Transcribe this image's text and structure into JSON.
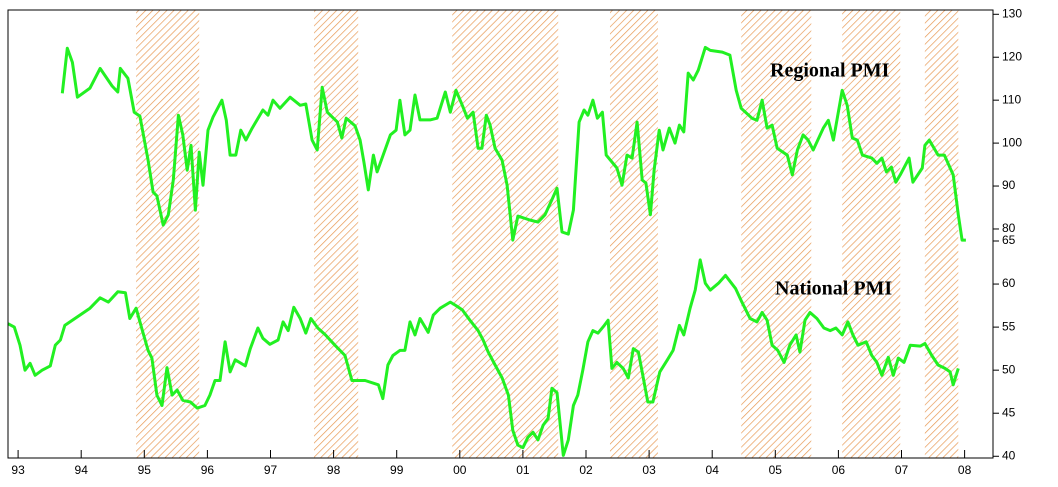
{
  "chart_data": [
    {
      "type": "line",
      "annotation": "Regional PMI",
      "xlim": [
        1992.84,
        2008.45
      ],
      "ylim": [
        77.2,
        131
      ],
      "yticks": [
        80,
        90,
        100,
        110,
        120,
        130
      ],
      "shaded_periods": [
        [
          1994.87,
          1995.87
        ],
        [
          1997.69,
          1998.39
        ],
        [
          1999.88,
          2001.56
        ],
        [
          2002.38,
          2003.14
        ],
        [
          2004.46,
          2005.57
        ],
        [
          2006.06,
          2006.98
        ],
        [
          2007.37,
          2007.9
        ]
      ],
      "series": [
        {
          "name": "Regional PMI",
          "color": "#22f022",
          "x": [
            1993.7,
            1993.78,
            1993.86,
            1993.94,
            1994.14,
            1994.3,
            1994.49,
            1994.58,
            1994.62,
            1994.74,
            1994.84,
            1994.93,
            1995.06,
            1995.14,
            1995.2,
            1995.3,
            1995.38,
            1995.46,
            1995.54,
            1995.61,
            1995.68,
            1995.74,
            1995.81,
            1995.87,
            1995.93,
            1996.01,
            1996.09,
            1996.23,
            1996.3,
            1996.36,
            1996.45,
            1996.53,
            1996.61,
            1996.71,
            1996.88,
            1996.96,
            1997.04,
            1997.15,
            1997.31,
            1997.47,
            1997.56,
            1997.66,
            1997.74,
            1997.82,
            1997.9,
            1998.06,
            1998.13,
            1998.2,
            1998.34,
            1998.42,
            1998.48,
            1998.55,
            1998.63,
            1998.69,
            1998.9,
            1998.99,
            1999.05,
            1999.13,
            1999.21,
            1999.29,
            1999.37,
            1999.53,
            1999.64,
            1999.77,
            1999.85,
            1999.94,
            2000.04,
            2000.12,
            2000.21,
            2000.29,
            2000.35,
            2000.42,
            2000.48,
            2000.56,
            2000.67,
            2000.75,
            2000.84,
            2000.92,
            2001.11,
            2001.24,
            2001.35,
            2001.46,
            2001.54,
            2001.62,
            2001.72,
            2001.8,
            2001.89,
            2001.97,
            2002.03,
            2002.11,
            2002.18,
            2002.26,
            2002.32,
            2002.49,
            2002.57,
            2002.65,
            2002.73,
            2002.81,
            2002.89,
            2002.95,
            2003.02,
            2003.08,
            2003.16,
            2003.22,
            2003.32,
            2003.41,
            2003.48,
            2003.55,
            2003.62,
            2003.7,
            2003.78,
            2003.89,
            2003.97,
            2004.16,
            2004.28,
            2004.38,
            2004.46,
            2004.63,
            2004.71,
            2004.79,
            2004.87,
            2004.95,
            2005.03,
            2005.19,
            2005.27,
            2005.35,
            2005.44,
            2005.52,
            2005.6,
            2005.76,
            2005.84,
            2005.92,
            2006.06,
            2006.14,
            2006.22,
            2006.3,
            2006.38,
            2006.53,
            2006.61,
            2006.69,
            2006.76,
            2006.84,
            2006.91,
            2006.98,
            2007.12,
            2007.18,
            2007.33,
            2007.37,
            2007.44,
            2007.58,
            2007.68,
            2007.82,
            2007.9,
            2007.96,
            2008.02
          ],
          "values": [
            111.6,
            122.1,
            118.8,
            110.7,
            112.8,
            117.4,
            113.3,
            111.9,
            117.4,
            115.1,
            107.2,
            106.3,
            96.0,
            88.6,
            87.7,
            80.9,
            83.3,
            91.4,
            106.5,
            101.9,
            93.7,
            99.5,
            84.4,
            97.9,
            90.2,
            103.0,
            106.1,
            110.0,
            105.3,
            97.2,
            97.2,
            103.0,
            100.7,
            103.5,
            107.7,
            106.5,
            110.0,
            108.1,
            110.7,
            108.8,
            109.1,
            100.7,
            98.4,
            113.0,
            107.2,
            104.9,
            101.2,
            105.8,
            104.0,
            100.7,
            95.6,
            89.1,
            97.2,
            93.3,
            101.9,
            103.0,
            110.0,
            101.9,
            103.0,
            111.2,
            105.4,
            105.4,
            105.8,
            111.9,
            107.2,
            112.3,
            108.8,
            105.8,
            107.2,
            98.8,
            98.8,
            106.5,
            104.2,
            98.8,
            96.0,
            90.2,
            77.4,
            83.0,
            82.1,
            81.6,
            83.3,
            86.8,
            89.5,
            79.3,
            78.8,
            84.4,
            104.9,
            107.7,
            106.5,
            110.0,
            105.8,
            107.2,
            97.2,
            94.2,
            90.2,
            97.2,
            96.5,
            104.9,
            91.4,
            90.7,
            83.3,
            93.7,
            103.0,
            98.4,
            103.5,
            100.0,
            104.2,
            102.6,
            116.3,
            114.7,
            117.0,
            122.3,
            121.6,
            121.2,
            120.5,
            112.3,
            108.1,
            105.8,
            105.3,
            110.0,
            103.5,
            104.2,
            98.8,
            97.2,
            92.6,
            98.4,
            101.9,
            100.7,
            98.4,
            103.5,
            105.3,
            100.7,
            112.3,
            108.8,
            101.2,
            100.7,
            97.2,
            96.5,
            95.3,
            96.5,
            93.3,
            94.4,
            90.9,
            92.6,
            96.5,
            90.9,
            94.2,
            99.5,
            100.7,
            97.2,
            97.2,
            92.6,
            83.3,
            77.4,
            77.4
          ]
        }
      ]
    },
    {
      "type": "line",
      "annotation": "National PMI",
      "xlim": [
        1992.84,
        2008.45
      ],
      "ylim": [
        39.8,
        65
      ],
      "yticks": [
        40,
        45,
        50,
        55,
        60,
        65
      ],
      "xticks": [
        {
          "value": 1993,
          "label": "93"
        },
        {
          "value": 1994,
          "label": "94"
        },
        {
          "value": 1995,
          "label": "95"
        },
        {
          "value": 1996,
          "label": "96"
        },
        {
          "value": 1997,
          "label": "97"
        },
        {
          "value": 1998,
          "label": "98"
        },
        {
          "value": 1999,
          "label": "99"
        },
        {
          "value": 2000,
          "label": "00"
        },
        {
          "value": 2001,
          "label": "01"
        },
        {
          "value": 2002,
          "label": "02"
        },
        {
          "value": 2003,
          "label": "03"
        },
        {
          "value": 2004,
          "label": "04"
        },
        {
          "value": 2005,
          "label": "05"
        },
        {
          "value": 2006,
          "label": "06"
        },
        {
          "value": 2007,
          "label": "07"
        },
        {
          "value": 2008,
          "label": "08"
        }
      ],
      "shaded_periods": [
        [
          1994.87,
          1995.87
        ],
        [
          1997.69,
          1998.39
        ],
        [
          1999.88,
          2001.56
        ],
        [
          2002.38,
          2003.14
        ],
        [
          2004.46,
          2005.57
        ],
        [
          2006.06,
          2006.98
        ],
        [
          2007.37,
          2007.9
        ]
      ],
      "series": [
        {
          "name": "National PMI",
          "color": "#22f022",
          "x": [
            1992.84,
            1992.94,
            1993.03,
            1993.11,
            1993.19,
            1993.27,
            1993.38,
            1993.51,
            1993.59,
            1993.67,
            1993.74,
            1993.98,
            1994.14,
            1994.3,
            1994.43,
            1994.58,
            1994.7,
            1994.77,
            1994.87,
            1994.97,
            1995.06,
            1995.12,
            1995.2,
            1995.28,
            1995.36,
            1995.44,
            1995.52,
            1995.61,
            1995.73,
            1995.84,
            1995.96,
            1996.04,
            1996.12,
            1996.2,
            1996.28,
            1996.36,
            1996.44,
            1996.6,
            1996.68,
            1996.8,
            1996.88,
            1996.99,
            1997.12,
            1997.2,
            1997.28,
            1997.37,
            1997.47,
            1997.56,
            1997.64,
            1997.75,
            1997.87,
            1998.02,
            1998.18,
            1998.29,
            1998.5,
            1998.71,
            1998.78,
            1998.86,
            1998.94,
            1999.05,
            1999.13,
            1999.21,
            1999.29,
            1999.37,
            1999.5,
            1999.58,
            1999.69,
            1999.85,
            1999.94,
            2000.04,
            2000.16,
            2000.29,
            2000.37,
            2000.45,
            2000.56,
            2000.67,
            2000.77,
            2000.84,
            2000.92,
            2001.0,
            2001.08,
            2001.16,
            2001.24,
            2001.32,
            2001.4,
            2001.46,
            2001.54,
            2001.64,
            2001.72,
            2001.8,
            2001.87,
            2001.95,
            2002.03,
            2002.11,
            2002.19,
            2002.29,
            2002.35,
            2002.41,
            2002.49,
            2002.59,
            2002.67,
            2002.75,
            2002.83,
            2002.9,
            2002.98,
            2003.06,
            2003.17,
            2003.29,
            2003.38,
            2003.48,
            2003.55,
            2003.65,
            2003.73,
            2003.81,
            2003.89,
            2003.97,
            2004.1,
            2004.21,
            2004.37,
            2004.47,
            2004.6,
            2004.71,
            2004.79,
            2004.87,
            2004.95,
            2005.04,
            2005.14,
            2005.23,
            2005.33,
            2005.39,
            2005.47,
            2005.55,
            2005.66,
            2005.77,
            2005.87,
            2005.96,
            2006.06,
            2006.15,
            2006.23,
            2006.31,
            2006.44,
            2006.53,
            2006.61,
            2006.69,
            2006.79,
            2006.87,
            2006.95,
            2007.04,
            2007.14,
            2007.3,
            2007.37,
            2007.48,
            2007.58,
            2007.69,
            2007.77,
            2007.82,
            2007.9
          ],
          "values": [
            55.4,
            55.0,
            52.9,
            50.0,
            50.8,
            49.4,
            50.0,
            50.5,
            52.9,
            53.5,
            55.2,
            56.4,
            57.2,
            58.4,
            57.9,
            59.1,
            59.0,
            56.0,
            57.2,
            54.6,
            52.3,
            51.4,
            47.1,
            45.9,
            50.3,
            47.1,
            47.7,
            46.5,
            46.3,
            45.6,
            45.9,
            47.1,
            48.8,
            48.8,
            53.3,
            49.8,
            51.2,
            50.5,
            52.5,
            54.9,
            53.7,
            53.0,
            53.5,
            55.6,
            54.6,
            57.3,
            56.0,
            54.3,
            56.0,
            54.9,
            54.1,
            52.9,
            51.7,
            48.8,
            48.8,
            48.3,
            46.7,
            50.6,
            51.7,
            52.3,
            52.3,
            55.6,
            54.1,
            56.0,
            54.4,
            56.4,
            57.2,
            57.9,
            57.5,
            57.0,
            55.8,
            54.6,
            53.5,
            52.1,
            50.6,
            49.1,
            47.1,
            43.0,
            41.3,
            41.0,
            42.2,
            42.8,
            41.9,
            43.6,
            44.4,
            47.9,
            47.4,
            40.1,
            41.9,
            45.9,
            47.1,
            50.0,
            53.3,
            54.6,
            54.3,
            55.2,
            55.8,
            50.2,
            50.9,
            50.2,
            49.1,
            52.5,
            52.1,
            49.4,
            46.3,
            46.3,
            49.8,
            51.2,
            52.3,
            55.2,
            54.1,
            57.2,
            59.3,
            62.8,
            60.1,
            59.3,
            60.1,
            61.0,
            59.5,
            57.9,
            56.0,
            55.6,
            56.7,
            55.8,
            52.9,
            52.3,
            50.9,
            52.9,
            54.1,
            52.1,
            55.8,
            56.7,
            56.0,
            54.9,
            54.6,
            54.9,
            54.1,
            55.6,
            54.1,
            52.9,
            53.3,
            51.7,
            50.9,
            49.4,
            51.5,
            49.4,
            51.4,
            50.9,
            52.9,
            52.8,
            53.1,
            51.7,
            50.6,
            50.2,
            49.8,
            48.3,
            50.2
          ]
        }
      ]
    }
  ]
}
